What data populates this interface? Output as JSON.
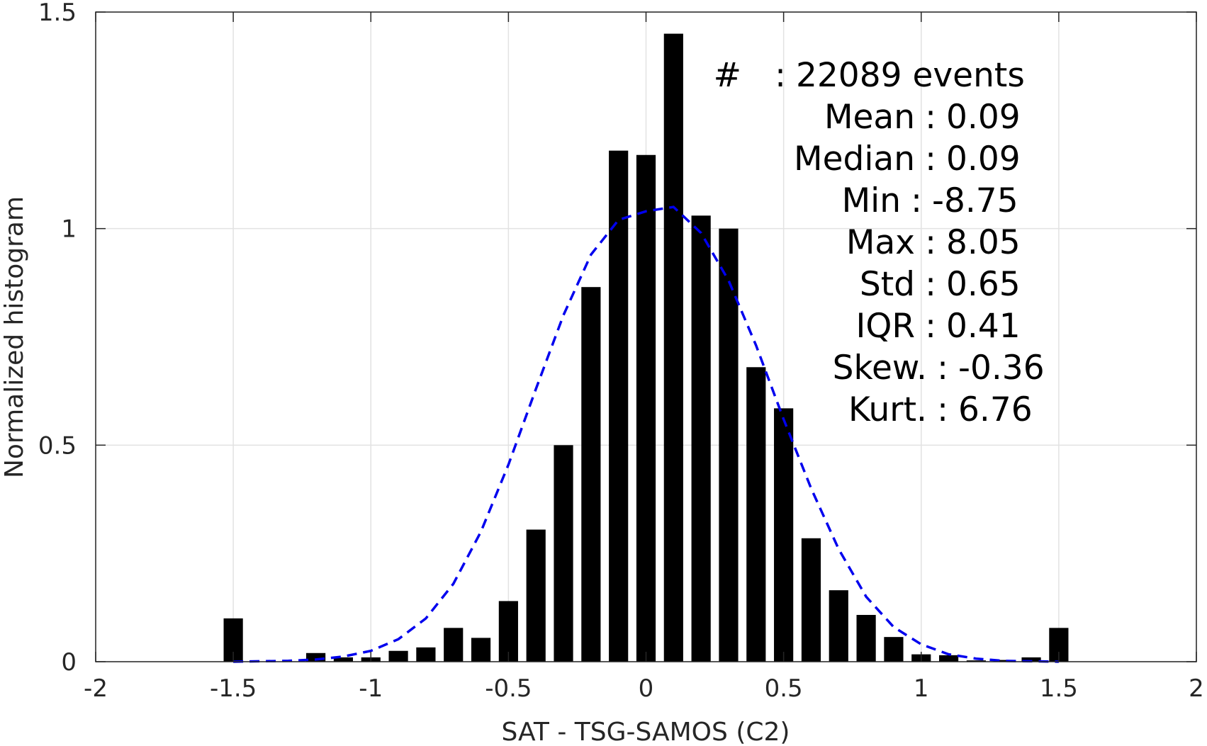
{
  "chart_data": {
    "type": "bar",
    "xlabel": "SAT - TSG-SAMOS (C2)",
    "ylabel": "Normalized histogram",
    "xlim": [
      -2,
      2
    ],
    "ylim": [
      0,
      1.5
    ],
    "grid": true,
    "x_ticks": [
      -2,
      -1.5,
      -1,
      -0.5,
      0,
      0.5,
      1,
      1.5,
      2
    ],
    "x_tick_labels": [
      "-2",
      "-1.5",
      "-1",
      "-0.5",
      "0",
      "0.5",
      "1",
      "1.5",
      "2"
    ],
    "y_ticks": [
      0,
      0.5,
      1,
      1.5
    ],
    "y_tick_labels": [
      "0",
      "0.5",
      "1",
      "1.5"
    ],
    "bar_width": 0.07,
    "series": [
      {
        "type": "bar",
        "color": "#000000",
        "x": [
          -1.5,
          -1.4,
          -1.3,
          -1.2,
          -1.1,
          -1.0,
          -0.9,
          -0.8,
          -0.7,
          -0.6,
          -0.5,
          -0.4,
          -0.3,
          -0.2,
          -0.1,
          0.0,
          0.1,
          0.2,
          0.3,
          0.4,
          0.5,
          0.6,
          0.7,
          0.8,
          0.9,
          1.0,
          1.1,
          1.2,
          1.3,
          1.4,
          1.5
        ],
        "values": [
          0.1,
          0.0,
          0.0,
          0.02,
          0.01,
          0.01,
          0.025,
          0.033,
          0.078,
          0.055,
          0.14,
          0.305,
          0.5,
          0.865,
          1.18,
          1.17,
          1.45,
          1.03,
          1.0,
          0.68,
          0.585,
          0.285,
          0.165,
          0.108,
          0.057,
          0.017,
          0.015,
          0.003,
          0.004,
          0.01,
          0.078
        ]
      },
      {
        "type": "line",
        "style": "dashed",
        "color": "#0000ee",
        "x": [
          -1.5,
          -1.4,
          -1.3,
          -1.2,
          -1.1,
          -1.0,
          -0.9,
          -0.8,
          -0.7,
          -0.6,
          -0.5,
          -0.4,
          -0.3,
          -0.2,
          -0.1,
          0.0,
          0.1,
          0.2,
          0.3,
          0.4,
          0.5,
          0.6,
          0.7,
          0.8,
          0.9,
          1.0,
          1.1,
          1.2,
          1.3,
          1.4,
          1.5
        ],
        "values": [
          0.0,
          0.001,
          0.002,
          0.005,
          0.012,
          0.025,
          0.052,
          0.1,
          0.18,
          0.3,
          0.455,
          0.63,
          0.8,
          0.94,
          1.02,
          1.04,
          1.05,
          0.99,
          0.88,
          0.73,
          0.56,
          0.4,
          0.26,
          0.15,
          0.08,
          0.04,
          0.017,
          0.007,
          0.002,
          0.001,
          0.0
        ]
      }
    ],
    "annotations": [
      {
        "label": "#",
        "sep": ":",
        "value": "22089 events"
      },
      {
        "label": "Mean",
        "sep": ":",
        "value": "0.09"
      },
      {
        "label": "Median",
        "sep": ":",
        "value": "0.09"
      },
      {
        "label": "Min",
        "sep": ":",
        "value": "-8.75"
      },
      {
        "label": "Max",
        "sep": ":",
        "value": "8.05"
      },
      {
        "label": "Std",
        "sep": ":",
        "value": "0.65"
      },
      {
        "label": "IQR",
        "sep": ":",
        "value": "0.41"
      },
      {
        "label": "Skew.",
        "sep": ":",
        "value": "-0.36"
      },
      {
        "label": "Kurt.",
        "sep": ":",
        "value": "6.76"
      }
    ]
  }
}
